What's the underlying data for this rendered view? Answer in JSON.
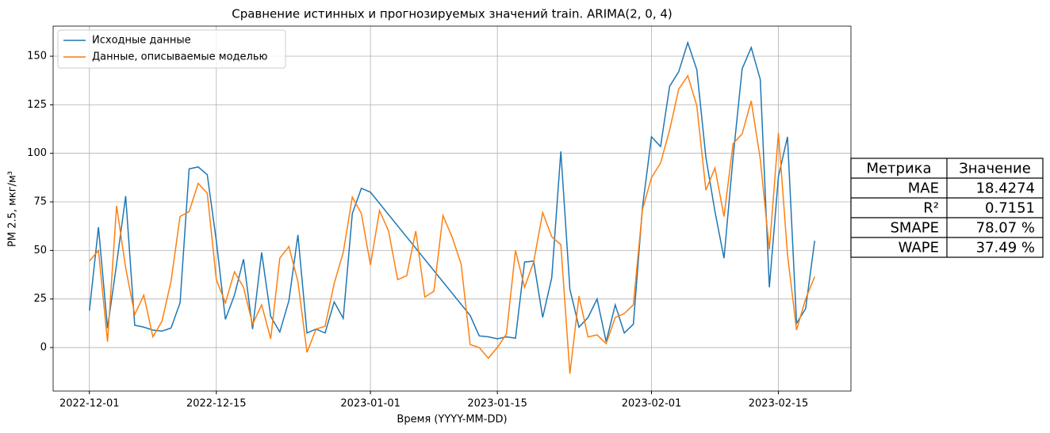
{
  "chart_data": {
    "type": "line",
    "title": "Сравнение истинных и прогнозируемых значений train. ARIMA(2, 0, 4)",
    "xlabel": "Время (YYYY-MM-DD)",
    "ylabel": "PM 2.5, мкг/м³",
    "xlim": [
      "2022-11-27",
      "2023-02-23"
    ],
    "xticks": [
      "2022-12-01",
      "2022-12-15",
      "2023-01-01",
      "2023-01-15",
      "2023-02-01",
      "2023-02-15"
    ],
    "ylim": [
      -22.4,
      165.5
    ],
    "yticks": [
      0,
      25,
      50,
      75,
      100,
      125,
      150
    ],
    "grid": true,
    "legend": "upper left",
    "series": [
      {
        "name": "Исходные данные",
        "color": "#1f77b4",
        "x": [
          "2022-12-01",
          "2022-12-02",
          "2022-12-03",
          "2022-12-04",
          "2022-12-05",
          "2022-12-06",
          "2022-12-07",
          "2022-12-08",
          "2022-12-09",
          "2022-12-10",
          "2022-12-11",
          "2022-12-12",
          "2022-12-13",
          "2022-12-14",
          "2022-12-15",
          "2022-12-16",
          "2022-12-17",
          "2022-12-18",
          "2022-12-19",
          "2022-12-20",
          "2022-12-21",
          "2022-12-22",
          "2022-12-23",
          "2022-12-24",
          "2022-12-25",
          "2022-12-26",
          "2022-12-27",
          "2022-12-28",
          "2022-12-29",
          "2022-12-30",
          "2022-12-31",
          "2023-01-01",
          "2023-01-12",
          "2023-01-13",
          "2023-01-14",
          "2023-01-15",
          "2023-01-16",
          "2023-01-17",
          "2023-01-18",
          "2023-01-19",
          "2023-01-20",
          "2023-01-21",
          "2023-01-22",
          "2023-01-23",
          "2023-01-24",
          "2023-01-25",
          "2023-01-26",
          "2023-01-27",
          "2023-01-28",
          "2023-01-29",
          "2023-01-30",
          "2023-01-31",
          "2023-02-01",
          "2023-02-02",
          "2023-02-03",
          "2023-02-04",
          "2023-02-05",
          "2023-02-06",
          "2023-02-07",
          "2023-02-08",
          "2023-02-09",
          "2023-02-10",
          "2023-02-11",
          "2023-02-12",
          "2023-02-13",
          "2023-02-14",
          "2023-02-15",
          "2023-02-16",
          "2023-02-17",
          "2023-02-18",
          "2023-02-19"
        ],
        "values": [
          19,
          62,
          10,
          43,
          78,
          11.5,
          10.5,
          9,
          8.5,
          10,
          23,
          92,
          93,
          89,
          55,
          14.5,
          27,
          45.5,
          9.5,
          49,
          16,
          8,
          24,
          58,
          7.5,
          9.5,
          7.5,
          23.5,
          15,
          69,
          82,
          80,
          16.5,
          6,
          5.5,
          4.5,
          5.5,
          4.8,
          44,
          44.5,
          15.5,
          36,
          101,
          30,
          10.5,
          15.5,
          25,
          3,
          22,
          7.5,
          12,
          72,
          108.5,
          103.5,
          134.5,
          142,
          157,
          143,
          98,
          70,
          46,
          98,
          143.5,
          154.5,
          138,
          31,
          88,
          108.5,
          12.5,
          20,
          55
        ]
      },
      {
        "name": "Данные, описываемые моделью",
        "color": "#ff7f0e",
        "x": [
          "2022-12-01",
          "2022-12-02",
          "2022-12-03",
          "2022-12-04",
          "2022-12-05",
          "2022-12-06",
          "2022-12-07",
          "2022-12-08",
          "2022-12-09",
          "2022-12-10",
          "2022-12-11",
          "2022-12-12",
          "2022-12-13",
          "2022-12-14",
          "2022-12-15",
          "2022-12-16",
          "2022-12-17",
          "2022-12-18",
          "2022-12-19",
          "2022-12-20",
          "2022-12-21",
          "2022-12-22",
          "2022-12-23",
          "2022-12-24",
          "2022-12-25",
          "2022-12-26",
          "2022-12-27",
          "2022-12-28",
          "2022-12-29",
          "2022-12-30",
          "2022-12-31",
          "2023-01-01",
          "2023-01-02",
          "2023-01-03",
          "2023-01-04",
          "2023-01-05",
          "2023-01-06",
          "2023-01-07",
          "2023-01-08",
          "2023-01-09",
          "2023-01-10",
          "2023-01-11",
          "2023-01-12",
          "2023-01-13",
          "2023-01-14",
          "2023-01-15",
          "2023-01-16",
          "2023-01-17",
          "2023-01-18",
          "2023-01-19",
          "2023-01-20",
          "2023-01-21",
          "2023-01-22",
          "2023-01-23",
          "2023-01-24",
          "2023-01-25",
          "2023-01-26",
          "2023-01-27",
          "2023-01-28",
          "2023-01-29",
          "2023-01-30",
          "2023-01-31",
          "2023-02-01",
          "2023-02-02",
          "2023-02-03",
          "2023-02-04",
          "2023-02-05",
          "2023-02-06",
          "2023-02-07",
          "2023-02-08",
          "2023-02-09",
          "2023-02-10",
          "2023-02-11",
          "2023-02-12",
          "2023-02-13",
          "2023-02-14",
          "2023-02-15",
          "2023-02-16",
          "2023-02-17",
          "2023-02-18",
          "2023-02-19"
        ],
        "values": [
          44.5,
          50,
          3,
          73,
          41,
          17,
          27,
          5.5,
          13.5,
          34,
          67.5,
          70,
          84.5,
          79.5,
          35,
          23,
          39,
          31,
          12,
          22,
          4.5,
          46,
          52,
          34,
          -2.5,
          9.5,
          11,
          33,
          49,
          77.5,
          69,
          42.5,
          70.5,
          60,
          35,
          37,
          60,
          26,
          29,
          68,
          57,
          43,
          1.5,
          0,
          -5.5,
          0,
          7,
          50,
          31,
          44,
          69.5,
          57,
          53,
          -13.5,
          26.5,
          5.5,
          6.5,
          2,
          15.5,
          17.5,
          22,
          71,
          87.5,
          95,
          112,
          133,
          140,
          124.5,
          81,
          92.5,
          67.5,
          105,
          110,
          127,
          97,
          50.5,
          110.5,
          48,
          9,
          25,
          36.5
        ]
      }
    ]
  },
  "table": {
    "header": [
      "Метрика",
      "Значение"
    ],
    "rows": [
      [
        "MAE",
        "18.4274"
      ],
      [
        "R²",
        "0.7151"
      ],
      [
        "SMAPE",
        "78.07 %"
      ],
      [
        "WAPE",
        "37.49 %"
      ]
    ]
  }
}
